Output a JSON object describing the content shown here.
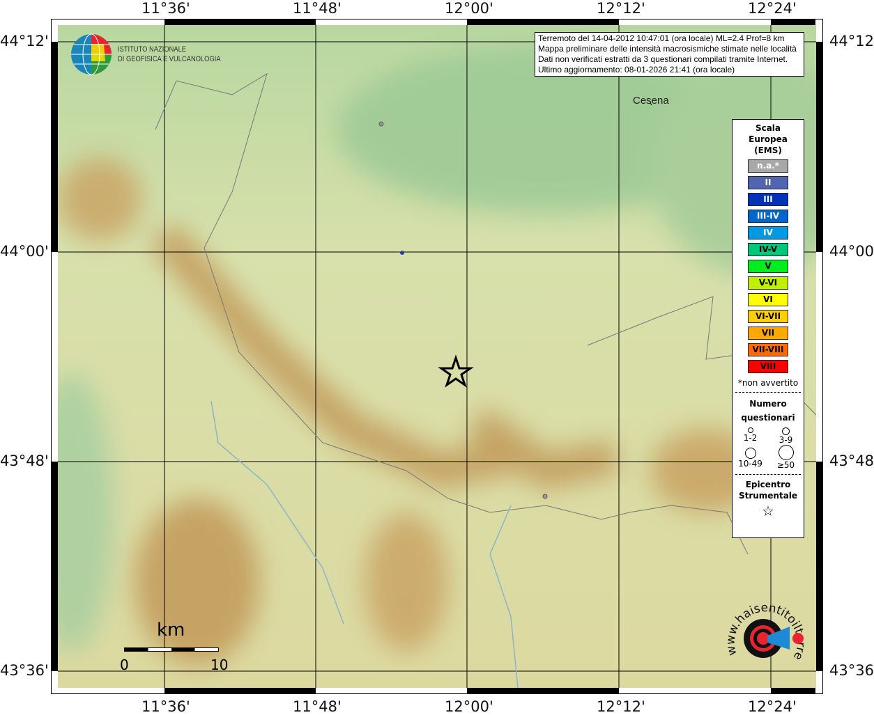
{
  "grid": {
    "lon_labels": [
      "11°36'",
      "11°48'",
      "12°00'",
      "12°12'",
      "12°24'"
    ],
    "lat_labels": [
      "44°12'",
      "44°00'",
      "43°48'",
      "43°36'"
    ]
  },
  "logo": {
    "line1": "ISTITUTO NAZIONALE",
    "line2": "DI GEOFISICA E VULCANOLOGIA"
  },
  "info": {
    "lines": [
      "Terremoto del 14-04-2012 10:47:01 (ora locale) ML=2.4 Prof=8 km",
      "Mappa preliminare delle intensità macrosismiche stimate nelle località",
      "Dati non verificati estratti da 3 questionari compilati tramite Internet.",
      "Ultimo aggiornamento: 08-01-2026 21:41 (ora locale)"
    ]
  },
  "places": {
    "cesena": "Cesena"
  },
  "legend": {
    "title": [
      "Scala",
      "Europea",
      "(EMS)"
    ],
    "classes": [
      {
        "label": "n.a.*",
        "color": "#a8a8a8",
        "text": "#fff"
      },
      {
        "label": "II",
        "color": "#5066b0",
        "text": "#fff"
      },
      {
        "label": "III",
        "color": "#0033b8",
        "text": "#fff"
      },
      {
        "label": "III-IV",
        "color": "#0066cc",
        "text": "#fff"
      },
      {
        "label": "IV",
        "color": "#0099e6",
        "text": "#fff"
      },
      {
        "label": "IV-V",
        "color": "#00c878",
        "text": "#000"
      },
      {
        "label": "V",
        "color": "#00ee20",
        "text": "#000"
      },
      {
        "label": "V-VI",
        "color": "#c0f000",
        "text": "#000"
      },
      {
        "label": "VI",
        "color": "#ffff00",
        "text": "#000"
      },
      {
        "label": "VI-VII",
        "color": "#ffd000",
        "text": "#000"
      },
      {
        "label": "VII",
        "color": "#ffa800",
        "text": "#000"
      },
      {
        "label": "VII-VIII",
        "color": "#ff6a00",
        "text": "#000"
      },
      {
        "label": "VIII",
        "color": "#ff0000",
        "text": "#000"
      }
    ],
    "note": "*non avvertito",
    "count_title": [
      "Numero",
      "questionari"
    ],
    "counts": [
      "1-2",
      "3-9",
      "10-49",
      "≥50"
    ],
    "epi_title": [
      "Epicentro",
      "Strumentale"
    ]
  },
  "scale": {
    "unit": "km",
    "start": "0",
    "end": "10"
  },
  "brand": {
    "text": "www.haisentitoilterremoto.it"
  }
}
